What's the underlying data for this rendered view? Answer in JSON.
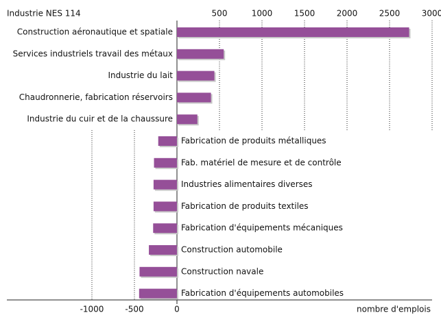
{
  "chart_data": {
    "type": "bar",
    "orientation": "horizontal",
    "title": "Industrie NES 114",
    "x_label": "nombre d'emplois",
    "categories": [
      "Construction aéronautique et spatiale",
      "Services industriels travail des métaux",
      "Industrie du lait",
      "Chaudronnerie, fabrication réservoirs",
      "Industrie du cuir et de la chaussure",
      "Fabrication de produits métalliques",
      "Fab. matériel de mesure et de contrôle",
      "Industries alimentaires diverses",
      "Fabrication de produits textiles",
      "Fabrication d'équipements mécaniques",
      "Construction automobile",
      "Construction navale",
      "Fabrication d'équipements automobiles"
    ],
    "values": [
      2730,
      550,
      440,
      400,
      240,
      -220,
      -270,
      -275,
      -275,
      -280,
      -330,
      -440,
      -445
    ],
    "color": "#954f98",
    "xlim": [
      -2000,
      3000
    ],
    "xticks": [
      -1000,
      -500,
      0,
      500,
      1000,
      1500,
      2000,
      2500,
      3000
    ],
    "grid": true
  }
}
